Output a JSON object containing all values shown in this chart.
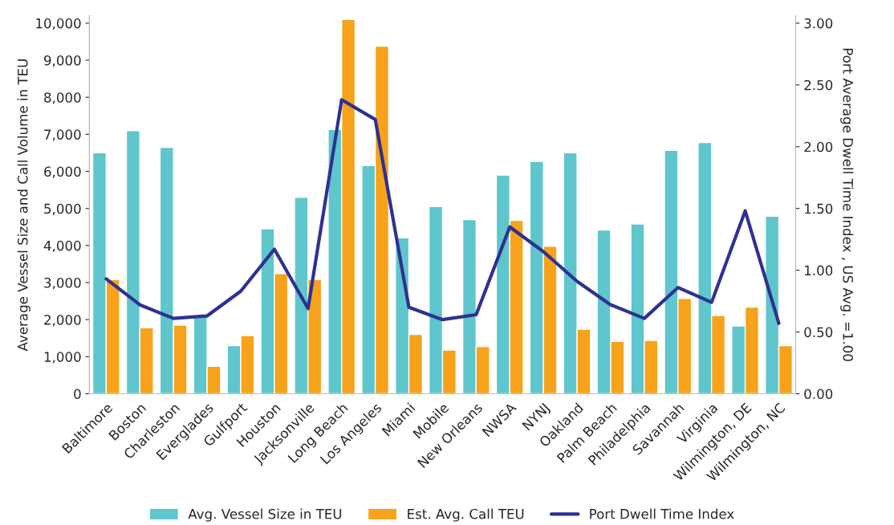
{
  "chart_data": {
    "type": "bar",
    "ylabel": "Average Vessel Size and Call Volume in TEU",
    "y2label": "Port Average Dwell Time Index , US Avg. =1.00",
    "categories": [
      "Baltimore",
      "Boston",
      "Charleston",
      "Everglades",
      "Gulfport",
      "Houston",
      "Jacksonville",
      "Long Beach",
      "Los Angeles",
      "Miami",
      "Mobile",
      "New Orleans",
      "NWSA",
      "NYNJ",
      "Oakland",
      "Palm Beach",
      "Philadelphia",
      "Savannah",
      "Virginia",
      "Wilmington, DE",
      "Wilmington, NC"
    ],
    "series": [
      {
        "name": "Avg. Vessel Size in TEU",
        "color": "#5ec6cc",
        "values": [
          6500,
          7100,
          6650,
          2100,
          1300,
          4450,
          5300,
          7130,
          6160,
          4210,
          5050,
          4700,
          5900,
          6270,
          6500,
          4420,
          4580,
          6570,
          6780,
          1830,
          4790
        ]
      },
      {
        "name": "Est. Avg. Call TEU",
        "color": "#f7a21b",
        "values": [
          3080,
          1780,
          1850,
          740,
          1570,
          3240,
          3080,
          10100,
          9380,
          1600,
          1180,
          1270,
          4680,
          3980,
          1740,
          1410,
          1440,
          2570,
          2110,
          2340,
          1300
        ]
      },
      {
        "name": "Port Dwell Time Index",
        "type": "line",
        "axis": "y2",
        "color": "#2e3192",
        "marker": "none",
        "values": [
          0.93,
          0.72,
          0.61,
          0.63,
          0.83,
          1.17,
          0.69,
          2.38,
          2.22,
          0.7,
          0.6,
          0.64,
          1.35,
          1.15,
          0.91,
          0.72,
          0.61,
          0.86,
          0.74,
          1.48,
          0.57
        ]
      }
    ],
    "ylim": [
      0,
      10200
    ],
    "yticks": [
      {
        "value": 0,
        "label": "0"
      },
      {
        "value": 1000,
        "label": "1,000"
      },
      {
        "value": 2000,
        "label": "2,000"
      },
      {
        "value": 3000,
        "label": "3,000"
      },
      {
        "value": 4000,
        "label": "4,000"
      },
      {
        "value": 5000,
        "label": "5,000"
      },
      {
        "value": 6000,
        "label": "6,000"
      },
      {
        "value": 7000,
        "label": "7,000"
      },
      {
        "value": 8000,
        "label": "8,000"
      },
      {
        "value": 9000,
        "label": "9,000"
      },
      {
        "value": 10000,
        "label": "10,000"
      }
    ],
    "y2lim": [
      0,
      3.06
    ],
    "y2ticks": [
      {
        "value": 0,
        "label": "0.00"
      },
      {
        "value": 0.5,
        "label": "0.50"
      },
      {
        "value": 1,
        "label": "1.00"
      },
      {
        "value": 1.5,
        "label": "1.50"
      },
      {
        "value": 2,
        "label": "2.00"
      },
      {
        "value": 2.5,
        "label": "2.50"
      },
      {
        "value": 3,
        "label": "3.00"
      }
    ],
    "grid": false,
    "legend": "bottom"
  }
}
